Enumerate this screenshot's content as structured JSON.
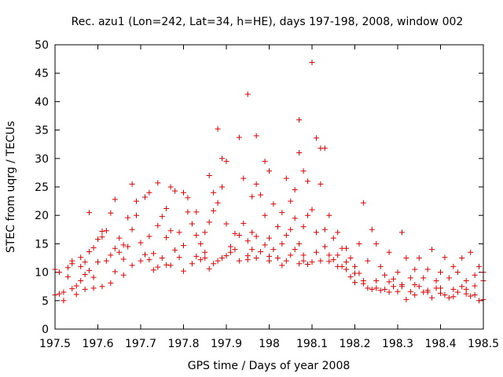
{
  "chart_data": {
    "type": "scatter",
    "title": "Rec. azu1 (Lon=242, Lat=34, h=HE), days 197-198, 2008, window 002",
    "xlabel": "GPS time / Days of year 2008",
    "ylabel": "STEC from uqrg / TECUs",
    "xlim": [
      197.5,
      198.5
    ],
    "ylim": [
      0,
      50
    ],
    "x_ticks": [
      "197.5",
      "197.6",
      "197.7",
      "197.8",
      "197.9",
      "198",
      "198.1",
      "198.2",
      "198.3",
      "198.4",
      "198.5"
    ],
    "y_ticks": [
      "0",
      "5",
      "10",
      "15",
      "20",
      "25",
      "30",
      "35",
      "40",
      "45",
      "50"
    ],
    "marker": "+",
    "marker_color": "#e00000",
    "grid": false,
    "series": [
      {
        "points": [
          [
            197.5,
            6.0
          ],
          [
            197.5,
            10.5
          ],
          [
            197.51,
            6.2
          ],
          [
            197.51,
            10.0
          ],
          [
            197.52,
            5.0
          ],
          [
            197.52,
            6.5
          ],
          [
            197.53,
            9.2
          ],
          [
            197.54,
            7.1
          ],
          [
            197.54,
            11.5
          ],
          [
            197.55,
            6.1
          ],
          [
            197.55,
            7.6
          ],
          [
            197.56,
            8.5
          ],
          [
            197.56,
            12.6
          ],
          [
            197.57,
            7.0
          ],
          [
            197.57,
            9.6
          ],
          [
            197.58,
            10.3
          ],
          [
            197.58,
            13.6
          ],
          [
            197.59,
            7.2
          ],
          [
            197.59,
            9.1
          ],
          [
            197.6,
            11.8
          ],
          [
            197.6,
            15.8
          ],
          [
            197.61,
            17.2
          ],
          [
            197.61,
            7.5
          ],
          [
            197.62,
            12.0
          ],
          [
            197.62,
            17.3
          ],
          [
            197.63,
            20.4
          ],
          [
            197.63,
            8.1
          ],
          [
            197.64,
            10.1
          ],
          [
            197.64,
            14.2
          ],
          [
            197.65,
            16.0
          ],
          [
            197.65,
            13.5
          ],
          [
            197.66,
            9.5
          ],
          [
            197.66,
            12.3
          ],
          [
            197.67,
            14.5
          ],
          [
            197.67,
            19.6
          ],
          [
            197.68,
            17.5
          ],
          [
            197.69,
            20.0
          ],
          [
            197.69,
            22.5
          ],
          [
            197.7,
            12.0
          ],
          [
            197.7,
            15.2
          ],
          [
            197.71,
            13.1
          ],
          [
            197.71,
            23.2
          ],
          [
            197.72,
            12.2
          ],
          [
            197.72,
            16.3
          ],
          [
            197.73,
            10.4
          ],
          [
            197.73,
            13.3
          ],
          [
            197.74,
            18.2
          ],
          [
            197.74,
            25.7
          ],
          [
            197.75,
            12.5
          ],
          [
            197.75,
            19.8
          ],
          [
            197.76,
            16.1
          ],
          [
            197.76,
            21.2
          ],
          [
            197.77,
            11.2
          ],
          [
            197.77,
            17.3
          ],
          [
            197.78,
            13.9
          ],
          [
            197.78,
            24.3
          ],
          [
            197.79,
            12.6
          ],
          [
            197.79,
            17.0
          ],
          [
            197.8,
            10.2
          ],
          [
            197.8,
            14.7
          ],
          [
            197.81,
            20.6
          ],
          [
            197.81,
            23.1
          ],
          [
            197.82,
            11.5
          ],
          [
            197.82,
            18.5
          ],
          [
            197.83,
            16.5
          ],
          [
            197.83,
            20.6
          ],
          [
            197.84,
            12.2
          ],
          [
            197.84,
            15.0
          ],
          [
            197.85,
            13.5
          ],
          [
            197.85,
            17.0
          ],
          [
            197.86,
            10.6
          ],
          [
            197.86,
            18.8
          ],
          [
            197.87,
            11.5
          ],
          [
            197.87,
            24.0
          ],
          [
            197.88,
            12.0
          ],
          [
            197.88,
            22.2
          ],
          [
            197.89,
            12.5
          ],
          [
            197.89,
            25.0
          ],
          [
            197.9,
            12.9
          ],
          [
            197.9,
            29.5
          ],
          [
            197.91,
            13.5
          ],
          [
            197.91,
            14.5
          ],
          [
            197.92,
            14.0
          ],
          [
            197.93,
            12.0
          ],
          [
            197.93,
            16.5
          ],
          [
            197.94,
            26.5
          ],
          [
            197.95,
            12.2
          ],
          [
            197.95,
            15.5
          ],
          [
            197.96,
            14.0
          ],
          [
            197.96,
            17.0
          ],
          [
            197.97,
            12.5
          ],
          [
            197.97,
            25.5
          ],
          [
            197.98,
            13.6
          ],
          [
            197.98,
            23.6
          ],
          [
            197.99,
            14.8
          ],
          [
            197.99,
            20.0
          ],
          [
            198.0,
            12.0
          ],
          [
            198.0,
            16.0
          ],
          [
            198.01,
            14.0
          ],
          [
            198.01,
            22.0
          ],
          [
            198.02,
            12.5
          ],
          [
            198.02,
            18.0
          ],
          [
            198.03,
            15.0
          ],
          [
            198.03,
            20.5
          ],
          [
            198.04,
            12.0
          ],
          [
            198.04,
            16.5
          ],
          [
            198.05,
            13.0
          ],
          [
            198.05,
            22.5
          ],
          [
            198.06,
            14.0
          ],
          [
            198.06,
            19.5
          ],
          [
            198.07,
            11.5
          ],
          [
            198.07,
            15.0
          ],
          [
            198.08,
            13.0
          ],
          [
            198.08,
            18.0
          ],
          [
            198.09,
            20.0
          ],
          [
            198.09,
            26.0
          ],
          [
            198.1,
            11.8
          ],
          [
            198.1,
            21.0
          ],
          [
            198.11,
            13.5
          ],
          [
            198.11,
            17.0
          ],
          [
            198.12,
            12.0
          ],
          [
            198.12,
            25.5
          ],
          [
            198.13,
            14.5
          ],
          [
            198.13,
            17.5
          ],
          [
            198.14,
            13.0
          ],
          [
            198.14,
            20.0
          ],
          [
            198.15,
            12.2
          ],
          [
            198.15,
            16.0
          ],
          [
            198.16,
            13.0
          ],
          [
            198.16,
            17.0
          ],
          [
            198.17,
            11.0
          ],
          [
            198.17,
            14.2
          ],
          [
            198.18,
            10.5
          ],
          [
            198.18,
            11.8
          ],
          [
            198.19,
            9.2
          ],
          [
            198.19,
            12.5
          ],
          [
            198.2,
            8.2
          ],
          [
            198.2,
            11.0
          ],
          [
            198.21,
            9.8
          ],
          [
            198.21,
            15.0
          ],
          [
            198.22,
            8.0
          ],
          [
            198.22,
            22.2
          ],
          [
            198.23,
            7.2
          ],
          [
            198.23,
            12.0
          ],
          [
            198.24,
            7.0
          ],
          [
            198.24,
            17.5
          ],
          [
            198.25,
            8.5
          ],
          [
            198.25,
            15.0
          ],
          [
            198.26,
            6.8
          ],
          [
            198.26,
            11.0
          ],
          [
            198.27,
            7.0
          ],
          [
            198.27,
            9.5
          ],
          [
            198.28,
            6.5
          ],
          [
            198.28,
            13.5
          ],
          [
            198.29,
            7.5
          ],
          [
            198.29,
            8.8
          ],
          [
            198.3,
            6.6
          ],
          [
            198.3,
            10.0
          ],
          [
            198.31,
            17.0
          ],
          [
            198.31,
            7.5
          ],
          [
            198.32,
            5.2
          ],
          [
            198.32,
            12.5
          ],
          [
            198.33,
            6.6
          ],
          [
            198.33,
            9.0
          ],
          [
            198.34,
            10.5
          ],
          [
            198.34,
            6.0
          ],
          [
            198.35,
            12.5
          ],
          [
            198.35,
            7.5
          ],
          [
            198.36,
            6.5
          ],
          [
            198.36,
            9.0
          ],
          [
            198.37,
            10.5
          ],
          [
            198.37,
            6.8
          ],
          [
            198.38,
            14.0
          ],
          [
            198.38,
            5.5
          ],
          [
            198.39,
            7.2
          ],
          [
            198.39,
            8.5
          ],
          [
            198.4,
            10.0
          ],
          [
            198.4,
            6.3
          ],
          [
            198.41,
            12.6
          ],
          [
            198.41,
            6.0
          ],
          [
            198.42,
            9.0
          ],
          [
            198.42,
            5.5
          ],
          [
            198.43,
            11.0
          ],
          [
            198.43,
            7.0
          ],
          [
            198.44,
            6.5
          ],
          [
            198.44,
            10.0
          ],
          [
            198.45,
            7.5
          ],
          [
            198.45,
            12.5
          ],
          [
            198.46,
            6.2
          ],
          [
            198.46,
            8.5
          ],
          [
            198.47,
            5.8
          ],
          [
            198.47,
            13.5
          ],
          [
            198.48,
            9.5
          ],
          [
            198.48,
            6.0
          ],
          [
            198.49,
            5.0
          ],
          [
            198.49,
            11.0
          ],
          [
            198.5,
            8.5
          ],
          [
            198.5,
            10.0
          ],
          [
            197.68,
            25.5
          ],
          [
            197.72,
            24.0
          ],
          [
            197.77,
            25.0
          ],
          [
            197.8,
            24.0
          ],
          [
            197.86,
            27.0
          ],
          [
            197.88,
            35.2
          ],
          [
            197.89,
            30.0
          ],
          [
            197.93,
            33.7
          ],
          [
            197.95,
            41.3
          ],
          [
            197.97,
            34.0
          ],
          [
            197.99,
            29.5
          ],
          [
            198.07,
            36.8
          ],
          [
            198.07,
            31.0
          ],
          [
            198.08,
            27.8
          ],
          [
            198.1,
            46.9
          ],
          [
            198.11,
            33.6
          ],
          [
            198.12,
            31.8
          ],
          [
            198.13,
            31.8
          ],
          [
            198.06,
            24.5
          ],
          [
            198.04,
            26.5
          ],
          [
            198.0,
            27.8
          ],
          [
            197.96,
            23.3
          ],
          [
            197.64,
            22.8
          ],
          [
            197.58,
            20.5
          ],
          [
            197.54,
            12.0
          ],
          [
            197.53,
            10.8
          ],
          [
            197.56,
            11.0
          ],
          [
            197.57,
            11.8
          ],
          [
            197.59,
            14.3
          ],
          [
            197.61,
            16.2
          ],
          [
            197.63,
            13.0
          ],
          [
            197.66,
            14.8
          ],
          [
            197.68,
            11.2
          ],
          [
            197.74,
            10.9
          ],
          [
            197.76,
            11.3
          ],
          [
            197.83,
            12.8
          ],
          [
            197.85,
            12.5
          ],
          [
            197.87,
            20.8
          ],
          [
            197.9,
            18.5
          ],
          [
            197.92,
            16.8
          ],
          [
            197.94,
            18.6
          ],
          [
            197.95,
            12.9
          ],
          [
            197.97,
            16.3
          ],
          [
            198.0,
            12.8
          ],
          [
            198.03,
            11.2
          ],
          [
            198.05,
            17.5
          ],
          [
            198.08,
            12.0
          ],
          [
            198.09,
            11.4
          ],
          [
            198.14,
            11.9
          ],
          [
            198.16,
            11.0
          ],
          [
            198.18,
            14.2
          ],
          [
            198.2,
            9.8
          ],
          [
            198.22,
            8.5
          ],
          [
            198.25,
            7.2
          ],
          [
            198.28,
            8.3
          ],
          [
            198.31,
            7.8
          ],
          [
            198.34,
            7.8
          ],
          [
            198.37,
            6.5
          ],
          [
            198.4,
            7.2
          ],
          [
            198.43,
            5.7
          ],
          [
            198.46,
            7.0
          ],
          [
            198.48,
            7.6
          ],
          [
            198.5,
            5.2
          ]
        ]
      }
    ]
  }
}
